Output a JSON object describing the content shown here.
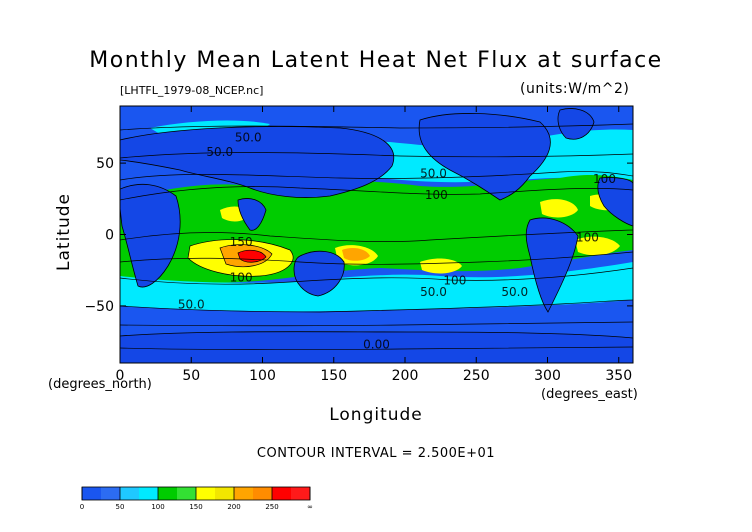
{
  "chart_data": {
    "type": "heatmap",
    "title": "Monthly Mean Latent Heat Net Flux at surface",
    "source_label": "[LHTFL_1979-08_NCEP.nc]",
    "units_label": "(units:W/m^2)",
    "xlabel": "Longitude",
    "ylabel": "Latitude",
    "x_unit_label": "(degrees_east)",
    "y_unit_label": "(degrees_north)",
    "contour_interval_text": "CONTOUR INTERVAL = 2.500E+01",
    "xlim": [
      0,
      360
    ],
    "ylim": [
      -90,
      90
    ],
    "x_ticks": [
      0,
      50,
      100,
      150,
      200,
      250,
      300,
      350
    ],
    "y_ticks": [
      -50,
      0,
      50
    ],
    "contour_labels": [
      {
        "text": "50.0",
        "lon": 90,
        "lat": 65
      },
      {
        "text": "50.0",
        "lon": 70,
        "lat": 55
      },
      {
        "text": "50.0",
        "lon": 220,
        "lat": 40
      },
      {
        "text": "100",
        "lon": 222,
        "lat": 25
      },
      {
        "text": "100",
        "lon": 340,
        "lat": 36
      },
      {
        "text": "150",
        "lon": 85,
        "lat": -8
      },
      {
        "text": "100",
        "lon": 85,
        "lat": -33
      },
      {
        "text": "100",
        "lon": 328,
        "lat": -5
      },
      {
        "text": "100",
        "lon": 235,
        "lat": -35
      },
      {
        "text": "50.0",
        "lon": 220,
        "lat": -43
      },
      {
        "text": "50.0",
        "lon": 277,
        "lat": -43
      },
      {
        "text": "50.0",
        "lon": 50,
        "lat": -52
      },
      {
        "text": "0.00",
        "lon": 180,
        "lat": -80
      }
    ],
    "colorbar": {
      "bounds": [
        "0",
        "50",
        "100",
        "150",
        "200",
        "250",
        "∞"
      ],
      "colors": [
        "#1a56f0",
        "#00eaff",
        "#00cc00",
        "#ffff00",
        "#ffa500",
        "#ff0000"
      ],
      "sub_colors": [
        "#1a56f0",
        "#2c6cf2",
        "#1fc8ff",
        "#00eaff",
        "#00cc00",
        "#33e033",
        "#ffff00",
        "#f2e600",
        "#ffa500",
        "#ff8c00",
        "#ff0000",
        "#ff1a1a"
      ]
    }
  }
}
